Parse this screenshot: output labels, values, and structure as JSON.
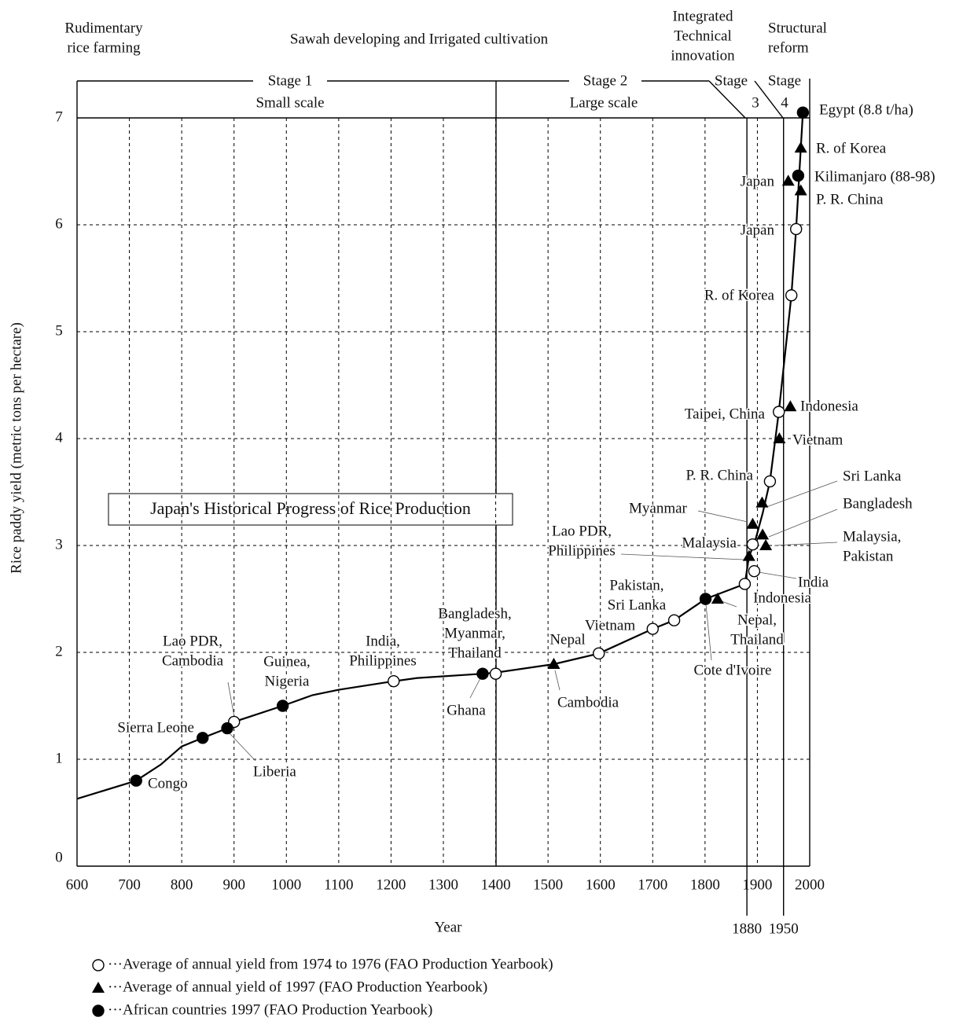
{
  "chart_data": {
    "type": "line",
    "periods": [
      [
        "Rudimentary",
        "rice farming"
      ],
      [
        "Sawah developing and Irrigated cultivation"
      ],
      [
        "Integrated",
        "Technical",
        "innovation"
      ],
      [
        "Structural",
        "reform"
      ]
    ],
    "stages": [
      {
        "label": "Stage 1",
        "sub": "Small scale"
      },
      {
        "label": "Stage 2",
        "sub": "Large scale"
      },
      {
        "label": "Stage",
        "sub": "3"
      },
      {
        "label": "Stage",
        "sub": "4"
      }
    ],
    "annotation": "Japan's Historical Progress of Rice Production",
    "x_label": "Year",
    "y_label": "Rice paddy yield (metric tons per hectare)",
    "xlim": [
      600,
      2000
    ],
    "ylim": [
      0,
      7
    ],
    "xticks": [
      600,
      700,
      800,
      900,
      1000,
      1100,
      1200,
      1300,
      1400,
      1500,
      1600,
      1700,
      1800,
      1900,
      2000
    ],
    "yticks": [
      0,
      1,
      2,
      3,
      4,
      5,
      6,
      7
    ],
    "boundary_ticks": [
      1880,
      1950
    ],
    "grid": true,
    "curve": {
      "color": "#000000",
      "x": [
        600,
        700,
        713,
        760,
        800,
        840,
        887,
        900,
        993,
        1050,
        1100,
        1205,
        1250,
        1375,
        1400,
        1511,
        1597,
        1700,
        1741,
        1801,
        1876,
        1884,
        1894,
        1910,
        1924,
        1941,
        1965,
        1974,
        1987
      ],
      "values": [
        0.63,
        0.78,
        0.8,
        0.95,
        1.12,
        1.2,
        1.29,
        1.35,
        1.5,
        1.6,
        1.65,
        1.73,
        1.76,
        1.8,
        1.81,
        1.89,
        1.99,
        2.22,
        2.3,
        2.5,
        2.64,
        2.9,
        3.01,
        3.3,
        3.6,
        4.25,
        5.34,
        5.96,
        7.05
      ]
    },
    "series": [
      {
        "name": "···Average of annual yield from 1974 to 1976 (FAO Production Yearbook)",
        "marker": "open-circle",
        "color": "#000000",
        "x": [
          900,
          1205,
          1400,
          1597,
          1700,
          1741,
          1876,
          1891,
          1894,
          1924,
          1941,
          1965,
          1974
        ],
        "values": [
          1.35,
          1.73,
          1.8,
          1.99,
          2.22,
          2.3,
          2.64,
          3.01,
          2.76,
          3.6,
          4.25,
          5.34,
          5.96
        ],
        "labels": [
          [
            "Lao PDR,",
            "Cambodia"
          ],
          [
            "India,",
            "Philippines"
          ],
          [
            "Bangladesh,",
            "Myanmar,",
            "Thailand"
          ],
          [
            "Vietnam"
          ],
          null,
          [
            "Pakistan,",
            "Sri Lanka"
          ],
          [
            "Indonesia"
          ],
          [
            "Malaysia"
          ],
          [
            "India"
          ],
          [
            "P. R. China"
          ],
          [
            "Taipei, China"
          ],
          [
            "R. of Korea"
          ],
          [
            "Japan"
          ]
        ]
      },
      {
        "name": "···Average of annual yield of 1997 (FAO Production Yearbook)",
        "marker": "triangle",
        "color": "#000000",
        "x": [
          1511,
          1511,
          1824,
          1884,
          1909,
          1910,
          1891,
          1916,
          1942,
          1963,
          1959,
          1983,
          1983
        ],
        "values": [
          1.89,
          1.89,
          2.5,
          2.9,
          3.4,
          3.1,
          3.2,
          3.0,
          4.0,
          4.3,
          6.41,
          6.32,
          6.72
        ],
        "labels": [
          [
            "Nepal"
          ],
          [
            "Cambodia"
          ],
          [
            "Nepal,",
            "Thailand"
          ],
          [
            "Lao PDR,",
            "Philippines"
          ],
          [
            "Sri Lanka"
          ],
          [
            "Bangladesh"
          ],
          [
            "Myanmar"
          ],
          [
            "Malaysia,",
            "Pakistan"
          ],
          [
            "Vietnam"
          ],
          [
            "Indonesia"
          ],
          [
            "Japan"
          ],
          [
            "P. R. China"
          ],
          [
            "R. of Korea"
          ]
        ]
      },
      {
        "name": "···African countries 1997 (FAO Production Yearbook)",
        "marker": "filled-circle",
        "color": "#000000",
        "x": [
          713,
          840,
          887,
          993,
          1375,
          1801,
          1978,
          1987
        ],
        "values": [
          0.8,
          1.2,
          1.29,
          1.5,
          1.8,
          2.5,
          6.46,
          7.05
        ],
        "labels": [
          [
            "Congo"
          ],
          [
            "Sierra Leone"
          ],
          [
            "Liberia"
          ],
          [
            "Guinea,",
            "Nigeria"
          ],
          [
            "Ghana"
          ],
          [
            "Cote d'Ivoire"
          ],
          [
            "Kilimanjaro (88-98)"
          ],
          [
            "Egypt (8.8 t/ha)"
          ]
        ]
      }
    ]
  }
}
